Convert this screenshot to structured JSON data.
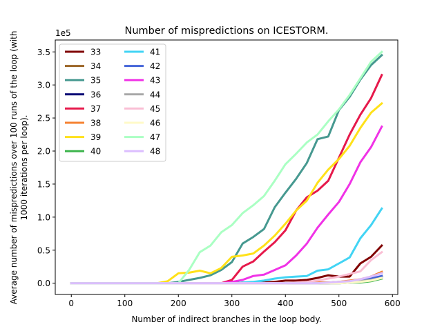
{
  "chart_data": {
    "type": "line",
    "title": "Number of mispredictions on ICESTORM.",
    "xlabel": "Number of indirect branches in the loop body.",
    "ylabel_line1": "Average number of mispredictions over 100 runs of the loop (with",
    "ylabel_line2": "1000 iterations per loop).",
    "offset_label": "1e5",
    "xlim": [
      -30,
      610
    ],
    "ylim": [
      -0.17,
      3.68
    ],
    "xticks": [
      0,
      100,
      200,
      300,
      400,
      500,
      600
    ],
    "xtick_labels": [
      "0",
      "100",
      "200",
      "300",
      "400",
      "500",
      "600"
    ],
    "yticks": [
      0,
      0.5,
      1,
      1.5,
      2,
      2.5,
      3,
      3.5
    ],
    "ytick_labels": [
      "0.0",
      "0.5",
      "1.0",
      "1.5",
      "2.0",
      "2.5",
      "3.0",
      "3.5"
    ],
    "y_unit_multiplier": 100000,
    "legend_position": "upper-left",
    "x": [
      0,
      20,
      40,
      60,
      80,
      100,
      120,
      140,
      160,
      180,
      200,
      220,
      240,
      260,
      280,
      300,
      320,
      340,
      360,
      380,
      400,
      420,
      440,
      460,
      480,
      500,
      520,
      540,
      560,
      580
    ],
    "series": [
      {
        "name": "33",
        "color": "#800000",
        "values": [
          0,
          0,
          0,
          0,
          0,
          0,
          0,
          0,
          0,
          0,
          0,
          0,
          0,
          0,
          0,
          0,
          0.01,
          0.01,
          0.01,
          0.02,
          0.04,
          0.04,
          0.05,
          0.08,
          0.12,
          0.1,
          0.1,
          0.3,
          0.4,
          0.57
        ]
      },
      {
        "name": "34",
        "color": "#9a6324",
        "values": [
          0,
          0,
          0,
          0,
          0,
          0,
          0,
          0,
          0,
          0,
          0,
          0,
          0,
          0,
          0,
          0,
          0,
          0,
          0,
          0,
          0,
          0,
          0,
          0.01,
          0.01,
          0.02,
          0.03,
          0.05,
          0.1,
          0.17
        ]
      },
      {
        "name": "35",
        "color": "#469990",
        "values": [
          0,
          0,
          0,
          0,
          0,
          0,
          0,
          0,
          0,
          0,
          0.02,
          0.05,
          0.08,
          0.12,
          0.2,
          0.32,
          0.6,
          0.7,
          0.82,
          1.15,
          1.37,
          1.58,
          1.82,
          2.18,
          2.22,
          2.62,
          2.82,
          3.08,
          3.3,
          3.45
        ]
      },
      {
        "name": "36",
        "color": "#000075",
        "values": [
          0,
          0,
          0,
          0,
          0,
          0,
          0,
          0,
          0,
          0,
          0,
          0,
          0,
          0,
          0,
          0,
          0,
          0,
          0,
          0,
          0,
          0,
          0,
          0,
          0,
          0.01,
          0.01,
          0.02,
          0.05,
          0.1
        ]
      },
      {
        "name": "37",
        "color": "#e6194b",
        "values": [
          0,
          0,
          0,
          0,
          0,
          0,
          0,
          0,
          0,
          0,
          0,
          0,
          0,
          0,
          0,
          0.05,
          0.25,
          0.33,
          0.48,
          0.62,
          0.8,
          1.1,
          1.3,
          1.4,
          1.55,
          1.9,
          2.25,
          2.55,
          2.8,
          3.15
        ]
      },
      {
        "name": "38",
        "color": "#f58231",
        "values": [
          0,
          0,
          0,
          0,
          0,
          0,
          0,
          0,
          0,
          0,
          0,
          0,
          0,
          0,
          0,
          0,
          0,
          0,
          0,
          0,
          0,
          0,
          0,
          0.01,
          0.01,
          0.02,
          0.04,
          0.06,
          0.1,
          0.17
        ]
      },
      {
        "name": "39",
        "color": "#ffe119",
        "values": [
          0,
          0,
          0,
          0,
          0,
          0,
          0,
          0,
          0,
          0.03,
          0.15,
          0.16,
          0.19,
          0.15,
          0.23,
          0.4,
          0.42,
          0.45,
          0.57,
          0.72,
          0.9,
          1.1,
          1.25,
          1.52,
          1.72,
          1.88,
          2.08,
          2.35,
          2.58,
          2.72
        ]
      },
      {
        "name": "40",
        "color": "#3cb44b",
        "values": [
          0,
          0,
          0,
          0,
          0,
          0,
          0,
          0,
          0,
          0,
          0,
          0,
          0,
          0,
          0,
          0,
          0,
          0,
          0,
          0,
          0,
          0,
          0,
          0,
          0,
          0,
          0.01,
          0.01,
          0.03,
          0.07
        ]
      },
      {
        "name": "41",
        "color": "#42d4f4",
        "values": [
          0,
          0,
          0,
          0,
          0,
          0,
          0,
          0,
          0,
          0,
          0,
          0,
          0,
          0,
          0,
          0,
          0.01,
          0.02,
          0.04,
          0.07,
          0.09,
          0.1,
          0.11,
          0.19,
          0.21,
          0.3,
          0.39,
          0.68,
          0.88,
          1.13
        ]
      },
      {
        "name": "42",
        "color": "#4363d8",
        "values": [
          0,
          0,
          0,
          0,
          0,
          0,
          0,
          0,
          0,
          0,
          0,
          0,
          0,
          0,
          0,
          0,
          0,
          0,
          0,
          0,
          0,
          0,
          0,
          0,
          0,
          0.01,
          0.02,
          0.04,
          0.07,
          0.11
        ]
      },
      {
        "name": "43",
        "color": "#f032e6",
        "values": [
          0,
          0,
          0,
          0,
          0,
          0,
          0,
          0,
          0,
          0,
          0,
          0,
          0,
          0,
          0,
          0.02,
          0.05,
          0.11,
          0.13,
          0.2,
          0.27,
          0.42,
          0.6,
          0.84,
          1.04,
          1.23,
          1.5,
          1.83,
          2.06,
          2.37
        ]
      },
      {
        "name": "44",
        "color": "#a9a9a9",
        "values": [
          0,
          0,
          0,
          0,
          0,
          0,
          0,
          0,
          0,
          0,
          0,
          0,
          0,
          0,
          0,
          0,
          0,
          0,
          0,
          0,
          0,
          0,
          0,
          0,
          0,
          0,
          0.01,
          0.03,
          0.05,
          0.08
        ]
      },
      {
        "name": "45",
        "color": "#fabed4",
        "values": [
          0,
          0,
          0,
          0,
          0,
          0,
          0,
          0,
          0,
          0,
          0,
          0,
          0,
          0,
          0,
          0,
          0,
          0,
          0,
          0,
          0,
          0.01,
          0.02,
          0.04,
          0.07,
          0.1,
          0.14,
          0.18,
          0.35,
          0.47
        ]
      },
      {
        "name": "46",
        "color": "#fffac8",
        "values": [
          0,
          0,
          0,
          0,
          0,
          0,
          0,
          0,
          0,
          0,
          0,
          0,
          0,
          0,
          0,
          0,
          0,
          0,
          0,
          0,
          0,
          0,
          0,
          0,
          0,
          0,
          0.01,
          0.02,
          0.04,
          0.08
        ]
      },
      {
        "name": "47",
        "color": "#aaffc3",
        "values": [
          0,
          0,
          0,
          0,
          0,
          0,
          0,
          0,
          0,
          0,
          0,
          0.2,
          0.47,
          0.57,
          0.77,
          0.88,
          1.06,
          1.18,
          1.32,
          1.55,
          1.8,
          1.96,
          2.13,
          2.25,
          2.45,
          2.63,
          2.85,
          3.1,
          3.35,
          3.5
        ]
      },
      {
        "name": "48",
        "color": "#dcbeff",
        "values": [
          0,
          0,
          0,
          0,
          0,
          0,
          0,
          0,
          0,
          0,
          0,
          0,
          0,
          0,
          0,
          0,
          0,
          0,
          0,
          0,
          0,
          0,
          0,
          0,
          0.01,
          0.02,
          0.03,
          0.06,
          0.1,
          0.15
        ]
      }
    ]
  }
}
